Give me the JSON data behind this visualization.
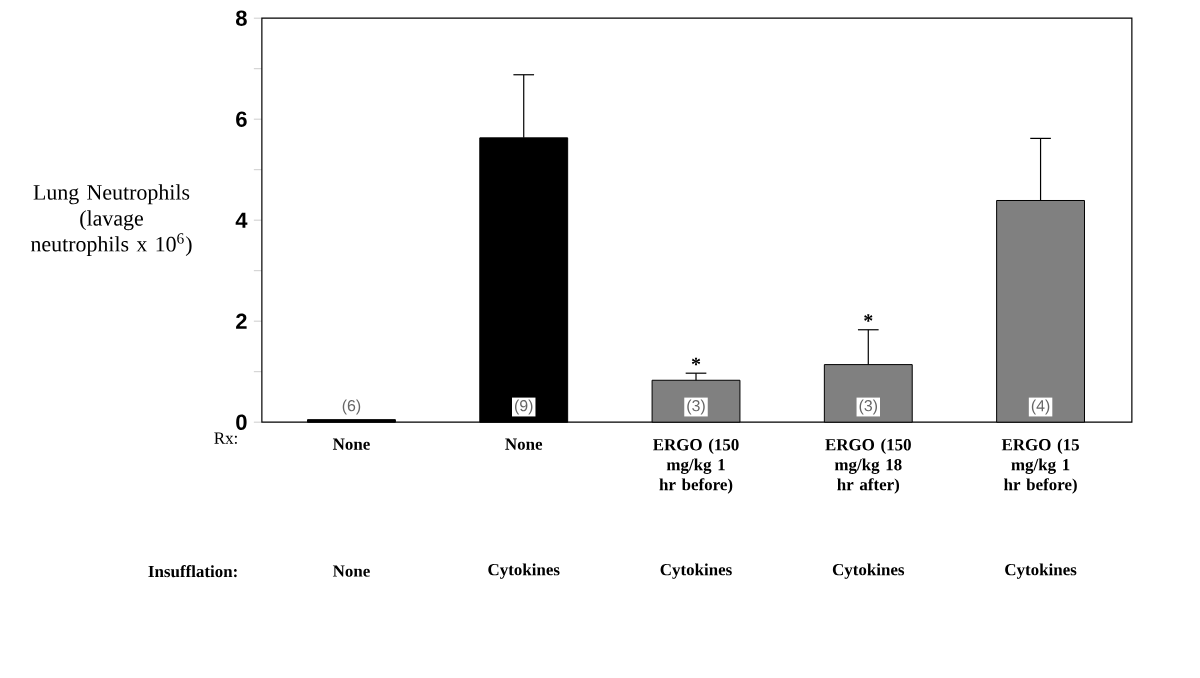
{
  "chart_data": {
    "type": "bar",
    "ylabel": "Lung Neutrophils (lavage neutrophils x 10$^{6}$)",
    "categories": [
      "None",
      "None",
      "ERGO (150 mg/kg 1 hr before)",
      "ERGO (150 mg/kg 18 hr after)",
      "ERGO (15 mg/kg 1 hr before)"
    ],
    "values": [
      0.05,
      5.63,
      0.83,
      1.14,
      4.39
    ],
    "colors": [
      "#000000",
      "#000000",
      "#808080",
      "#808080",
      "#808080"
    ],
    "errors": [
      null,
      1.25,
      0.14,
      0.69,
      1.23
    ],
    "ylim": [
      0,
      8
    ],
    "yticks": [
      0,
      {
        "value": 1,
        "label": null
      },
      2,
      {
        "value": 3,
        "label": null
      },
      4,
      {
        "value": 5,
        "label": null
      },
      6,
      {
        "value": 7,
        "label": null
      },
      8
    ],
    "annotations": [
      "Rx:",
      "Insufflation:",
      "None",
      "Cytokines",
      "Cytokines",
      "Cytokines",
      "Cytokines",
      "(6)",
      "(9)",
      "(3)",
      "(3)",
      "(4)",
      "*",
      "*"
    ],
    "grid": false
  }
}
